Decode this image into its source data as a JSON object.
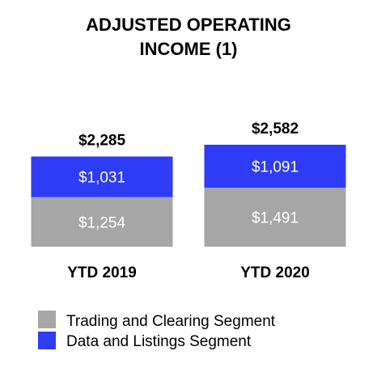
{
  "chart_data": {
    "type": "bar",
    "stacked": true,
    "title_lines": [
      "ADJUSTED OPERATING",
      "INCOME (1)"
    ],
    "categories": [
      "YTD 2019",
      "YTD 2020"
    ],
    "series": [
      {
        "name": "Trading and Clearing Segment",
        "values": [
          1254,
          1491
        ],
        "labels": [
          "$1,254",
          "$1,491"
        ],
        "color": "#a6a6a6"
      },
      {
        "name": "Data and Listings Segment",
        "values": [
          1031,
          1091
        ],
        "labels": [
          "$1,031",
          "$1,091"
        ],
        "color": "#2e3cf5"
      }
    ],
    "totals": [
      "$2,285",
      "$2,582"
    ],
    "total_values": [
      2285,
      2582
    ],
    "ylim": [
      0,
      2582
    ],
    "grid": false,
    "legend_position": "bottom-left"
  }
}
